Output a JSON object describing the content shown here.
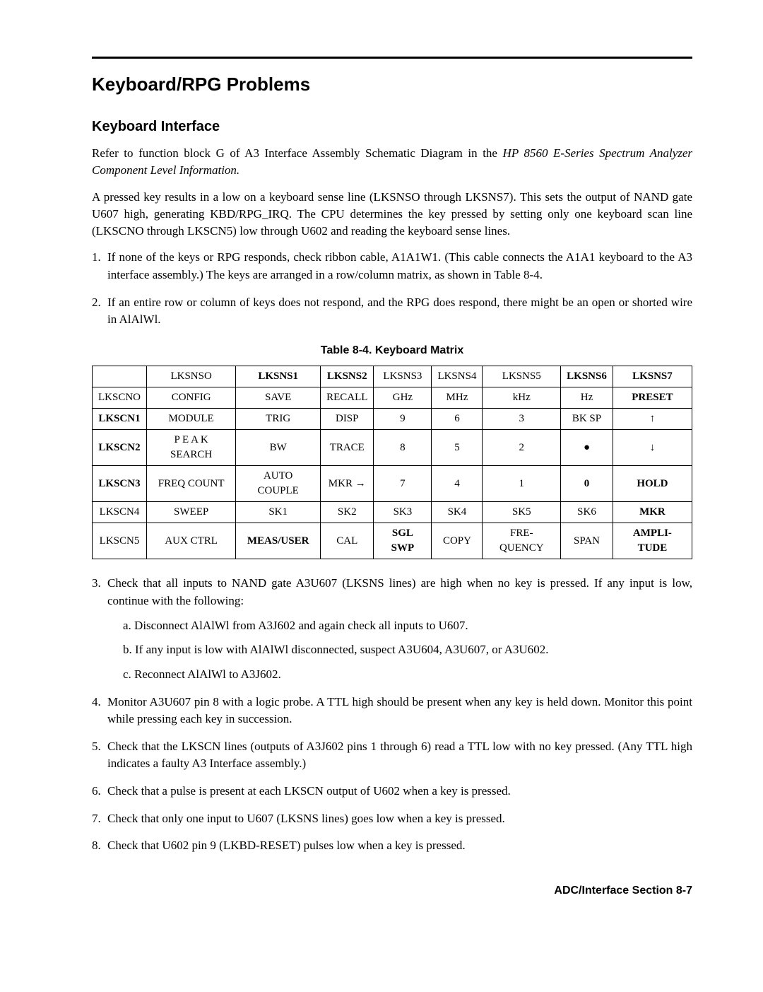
{
  "heading": "Keyboard/RPG Problems",
  "subheading": "Keyboard Interface",
  "intro1": "Refer to function block G of A3 Interface Assembly Schematic Diagram in the",
  "intro1_italic": "HP 8560 E-Series Spectrum Analyzer Component Level Information.",
  "intro2": "A pressed key results in a low on a keyboard sense line (LKSNSO through LKSNS7). This sets the output of NAND gate U607 high, generating KBD/RPG_IRQ. The CPU determines the key pressed by setting only one keyboard scan line (LKSCNO through LKSCN5) low through U602 and reading the keyboard sense lines.",
  "list_top": [
    {
      "n": "1.",
      "text": "If none of the keys or RPG responds, check ribbon cable, A1A1W1. (This cable connects the A1A1 keyboard to the A3 interface assembly.) The keys are arranged in a row/column matrix, as shown in Table 8-4."
    },
    {
      "n": "2.",
      "text": "If an entire row or column of keys does not respond, and the RPG does respond, there might be an open or shorted wire in AlAlWl."
    }
  ],
  "table": {
    "caption": "Table 8-4. Keyboard Matrix",
    "cols": [
      "",
      "LKSNSO",
      "LKSNS1",
      "LKSNS2",
      "LKSNS3",
      "LKSNS4",
      "LKSNS5",
      "LKSNS6",
      "LKSNS7"
    ],
    "header_bold": [
      false,
      false,
      true,
      true,
      false,
      false,
      false,
      true,
      true
    ],
    "rows": [
      {
        "h": "LKSCNO",
        "bold": false,
        "c": [
          "CONFIG",
          "SAVE",
          "RECALL",
          "GHz",
          "MHz",
          "kHz",
          "Hz",
          "PRESET"
        ],
        "cbold": [
          false,
          false,
          false,
          false,
          false,
          false,
          false,
          true
        ]
      },
      {
        "h": "LKSCN1",
        "bold": true,
        "c": [
          "MODULE",
          "TRIG",
          "DISP",
          "9",
          "6",
          "3",
          "BK SP",
          "↑"
        ],
        "cbold": [
          false,
          false,
          false,
          false,
          false,
          false,
          false,
          false
        ]
      },
      {
        "h": "LKSCN2",
        "bold": true,
        "c": [
          "P E A K SEARCH",
          "BW",
          "TRACE",
          "8",
          "5",
          "2",
          "●",
          "↓"
        ],
        "cbold": [
          false,
          false,
          false,
          false,
          false,
          false,
          false,
          false
        ]
      },
      {
        "h": "LKSCN3",
        "bold": true,
        "c": [
          "FREQ COUNT",
          "AUTO COUPLE",
          "MKR →",
          "7",
          "4",
          "1",
          "0",
          "HOLD"
        ],
        "cbold": [
          false,
          false,
          false,
          false,
          false,
          false,
          true,
          true
        ]
      },
      {
        "h": "LKSCN4",
        "bold": false,
        "c": [
          "SWEEP",
          "SK1",
          "SK2",
          "SK3",
          "SK4",
          "SK5",
          "SK6",
          "MKR"
        ],
        "cbold": [
          false,
          false,
          false,
          false,
          false,
          false,
          false,
          true
        ]
      },
      {
        "h": "LKSCN5",
        "bold": false,
        "c": [
          "AUX CTRL",
          "MEAS/USER",
          "CAL",
          "SGL SWP",
          "COPY",
          "FRE-QUENCY",
          "SPAN",
          "AMPLI-TUDE"
        ],
        "cbold": [
          false,
          true,
          false,
          true,
          false,
          false,
          false,
          true
        ]
      }
    ]
  },
  "list_bottom": [
    {
      "n": "3.",
      "text": "Check that all inputs to NAND gate A3U607 (LKSNS lines) are high when no key is pressed. If any input is low, continue with the following:",
      "sub": [
        {
          "n": "a.",
          "text": "Disconnect AlAlWl from A3J602 and again check all inputs to U607."
        },
        {
          "n": "b.",
          "text": "If any input is low with AlAlWl disconnected, suspect A3U604, A3U607, or A3U602."
        },
        {
          "n": "c.",
          "text": "Reconnect AlAlWl to A3J602."
        }
      ]
    },
    {
      "n": "4.",
      "text": "Monitor A3U607 pin 8 with a logic probe. A TTL high should be present when any key is held down. Monitor this point while pressing each key in succession."
    },
    {
      "n": "5.",
      "text": "Check that the LKSCN lines (outputs of A3J602 pins 1 through 6) read a TTL low with no key pressed. (Any TTL high indicates a faulty A3 Interface assembly.)"
    },
    {
      "n": "6.",
      "text": "Check that a pulse is present at each LKSCN output of U602 when a key is pressed."
    },
    {
      "n": "7.",
      "text": "Check that only one input to U607 (LKSNS lines) goes low when a key is pressed."
    },
    {
      "n": "8.",
      "text": "Check that U602 pin 9 (LKBD-RESET) pulses low when a key is pressed."
    }
  ],
  "footer": "ADC/Interface Section 8-7"
}
